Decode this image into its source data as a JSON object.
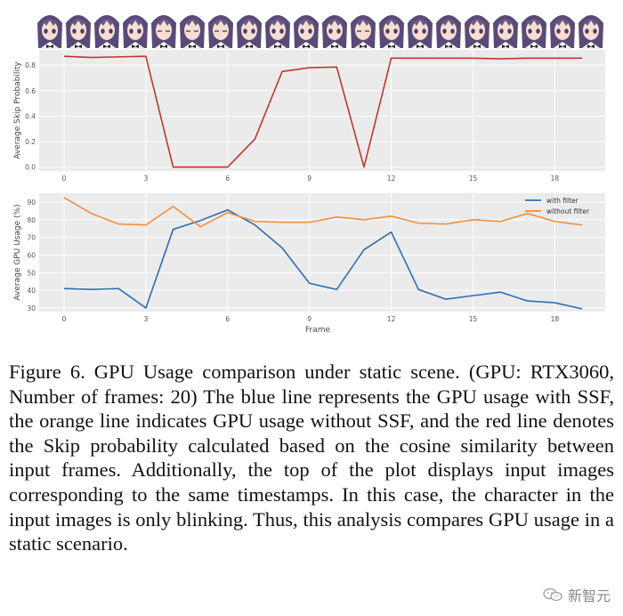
{
  "frames": {
    "count": 20,
    "blink_frames": [
      4,
      5,
      6,
      11
    ]
  },
  "chart_data": [
    {
      "type": "line",
      "ylabel": "Average Skip Probability",
      "xlabel": "",
      "x": [
        0,
        1,
        2,
        3,
        4,
        5,
        6,
        7,
        8,
        9,
        10,
        11,
        12,
        13,
        14,
        15,
        16,
        17,
        18,
        19
      ],
      "xticks": [
        0,
        3,
        6,
        9,
        12,
        15,
        18
      ],
      "yticks": [
        "0.0",
        "0.2",
        "0.4",
        "0.6",
        "0.8"
      ],
      "ylim": [
        -0.03,
        0.92
      ],
      "grid": true,
      "series": [
        {
          "name": "",
          "color": "#c0392b",
          "values": [
            0.87,
            0.86,
            0.865,
            0.87,
            0.0,
            0.0,
            0.0,
            0.22,
            0.75,
            0.78,
            0.785,
            0.0,
            0.855,
            0.855,
            0.855,
            0.855,
            0.85,
            0.855,
            0.855,
            0.855
          ]
        }
      ]
    },
    {
      "type": "line",
      "ylabel": "Average GPU Usage (%)",
      "xlabel": "Frame",
      "x": [
        0,
        1,
        2,
        3,
        4,
        5,
        6,
        7,
        8,
        9,
        10,
        11,
        12,
        13,
        14,
        15,
        16,
        17,
        18,
        19
      ],
      "xticks": [
        0,
        3,
        6,
        9,
        12,
        15,
        18
      ],
      "yticks": [
        "30",
        "40",
        "50",
        "60",
        "70",
        "80",
        "90"
      ],
      "ylim": [
        28,
        95
      ],
      "grid": true,
      "legend": "top-right",
      "series": [
        {
          "name": "with filter",
          "color": "#2e6db4",
          "values": [
            41,
            40.5,
            41,
            30,
            74.5,
            79.5,
            85.5,
            77,
            64,
            44,
            40.5,
            63,
            73,
            40.5,
            35,
            37,
            39,
            34,
            33,
            29.5
          ]
        },
        {
          "name": "without filter",
          "color": "#ef8f3e",
          "values": [
            92.5,
            83.5,
            77.5,
            77,
            87.5,
            76,
            84,
            79,
            78.5,
            78.5,
            81.5,
            80,
            82,
            78,
            77.5,
            80,
            79,
            83.5,
            79,
            77
          ]
        }
      ]
    }
  ],
  "caption": "Figure 6.  GPU Usage comparison under static scene.  (GPU: RTX3060, Number of frames: 20) The blue line represents the GPU usage with SSF, the orange line indicates GPU usage without SSF, and the red line denotes the Skip probability calculated based on the cosine similarity between input frames. Additionally, the top of the plot displays input images corresponding to the same timestamps. In this case, the character in the input images is only blinking. Thus, this analysis compares GPU usage in a static scenario.",
  "watermark": {
    "text": "新智元",
    "icon": "wechat-icon"
  }
}
